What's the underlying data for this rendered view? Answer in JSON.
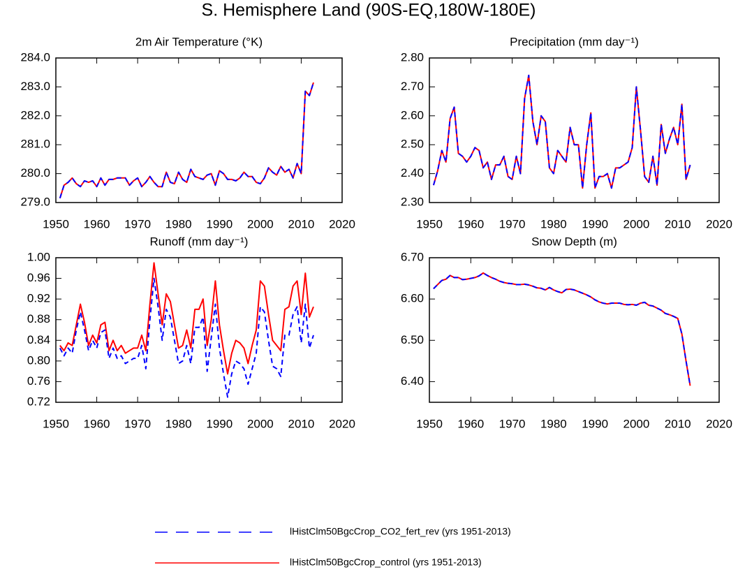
{
  "title": "S. Hemisphere Land (90S-EQ,180W-180E)",
  "chart_data": [
    {
      "type": "line",
      "title": "2m Air Temperature (°K)",
      "x": [
        1951,
        1952,
        1953,
        1954,
        1955,
        1956,
        1957,
        1958,
        1959,
        1960,
        1961,
        1962,
        1963,
        1964,
        1965,
        1966,
        1967,
        1968,
        1969,
        1970,
        1971,
        1972,
        1973,
        1974,
        1975,
        1976,
        1977,
        1978,
        1979,
        1980,
        1981,
        1982,
        1983,
        1984,
        1985,
        1986,
        1987,
        1988,
        1989,
        1990,
        1991,
        1992,
        1993,
        1994,
        1995,
        1996,
        1997,
        1998,
        1999,
        2000,
        2001,
        2002,
        2003,
        2004,
        2005,
        2006,
        2007,
        2008,
        2009,
        2010,
        2011,
        2012,
        2013
      ],
      "series": [
        {
          "name": "lHistClm50BgcCrop_CO2_fert_rev (yrs 1951-2013)",
          "color": "#0000ff",
          "dashed": true,
          "values": [
            279.15,
            279.6,
            279.7,
            279.85,
            279.65,
            279.55,
            279.75,
            279.7,
            279.75,
            279.55,
            279.85,
            279.6,
            279.8,
            279.8,
            279.85,
            279.85,
            279.85,
            279.6,
            279.75,
            279.85,
            279.55,
            279.7,
            279.9,
            279.7,
            279.55,
            279.55,
            280.05,
            279.7,
            279.65,
            280.05,
            279.8,
            279.7,
            280.15,
            279.9,
            279.85,
            279.8,
            279.95,
            280.0,
            279.6,
            280.1,
            280.0,
            279.8,
            279.8,
            279.75,
            279.85,
            280.05,
            279.9,
            279.9,
            279.7,
            279.65,
            279.85,
            280.2,
            280.05,
            279.95,
            280.25,
            280.05,
            280.15,
            279.85,
            280.35,
            280.0,
            282.85,
            282.7,
            283.15
          ]
        },
        {
          "name": "lHistClm50BgcCrop_control (yrs 1951-2013)",
          "color": "#ff0000",
          "dashed": false,
          "values": [
            279.15,
            279.6,
            279.7,
            279.85,
            279.65,
            279.55,
            279.75,
            279.7,
            279.75,
            279.55,
            279.85,
            279.6,
            279.8,
            279.8,
            279.85,
            279.85,
            279.85,
            279.6,
            279.75,
            279.85,
            279.55,
            279.7,
            279.9,
            279.7,
            279.55,
            279.55,
            280.05,
            279.7,
            279.65,
            280.05,
            279.8,
            279.7,
            280.15,
            279.9,
            279.85,
            279.8,
            279.95,
            280.0,
            279.6,
            280.1,
            280.0,
            279.8,
            279.8,
            279.75,
            279.85,
            280.05,
            279.9,
            279.9,
            279.7,
            279.65,
            279.85,
            280.2,
            280.05,
            279.95,
            280.25,
            280.05,
            280.15,
            279.85,
            280.35,
            280.0,
            282.85,
            282.7,
            283.15
          ]
        }
      ],
      "xlim": [
        1950,
        2020
      ],
      "xticks": [
        1950,
        1960,
        1970,
        1980,
        1990,
        2000,
        2010,
        2020
      ],
      "ylim": [
        279,
        284
      ],
      "yticks": [
        {
          "value": 279,
          "label": "279.0"
        },
        {
          "value": 280,
          "label": "280.0"
        },
        {
          "value": 281,
          "label": "281.0"
        },
        {
          "value": 282,
          "label": "282.0"
        },
        {
          "value": 283,
          "label": "283.0"
        },
        {
          "value": 284,
          "label": "284.0"
        }
      ]
    },
    {
      "type": "line",
      "title": "Precipitation (mm day⁻¹)",
      "x": [
        1951,
        1952,
        1953,
        1954,
        1955,
        1956,
        1957,
        1958,
        1959,
        1960,
        1961,
        1962,
        1963,
        1964,
        1965,
        1966,
        1967,
        1968,
        1969,
        1970,
        1971,
        1972,
        1973,
        1974,
        1975,
        1976,
        1977,
        1978,
        1979,
        1980,
        1981,
        1982,
        1983,
        1984,
        1985,
        1986,
        1987,
        1988,
        1989,
        1990,
        1991,
        1992,
        1993,
        1994,
        1995,
        1996,
        1997,
        1998,
        1999,
        2000,
        2001,
        2002,
        2003,
        2004,
        2005,
        2006,
        2007,
        2008,
        2009,
        2010,
        2011,
        2012,
        2013
      ],
      "series": [
        {
          "color": "#0000ff",
          "dashed": true,
          "values": [
            2.36,
            2.41,
            2.48,
            2.44,
            2.59,
            2.63,
            2.47,
            2.46,
            2.44,
            2.46,
            2.49,
            2.48,
            2.42,
            2.44,
            2.38,
            2.43,
            2.43,
            2.46,
            2.39,
            2.38,
            2.46,
            2.4,
            2.66,
            2.74,
            2.58,
            2.5,
            2.6,
            2.58,
            2.42,
            2.4,
            2.48,
            2.46,
            2.44,
            2.56,
            2.5,
            2.5,
            2.35,
            2.5,
            2.61,
            2.35,
            2.39,
            2.39,
            2.4,
            2.35,
            2.42,
            2.42,
            2.43,
            2.44,
            2.49,
            2.7,
            2.55,
            2.39,
            2.37,
            2.46,
            2.36,
            2.57,
            2.47,
            2.52,
            2.56,
            2.5,
            2.64,
            2.38,
            2.43
          ]
        },
        {
          "color": "#ff0000",
          "dashed": false,
          "values": [
            2.36,
            2.41,
            2.48,
            2.44,
            2.59,
            2.63,
            2.47,
            2.46,
            2.44,
            2.46,
            2.49,
            2.48,
            2.42,
            2.44,
            2.38,
            2.43,
            2.43,
            2.46,
            2.39,
            2.38,
            2.46,
            2.4,
            2.66,
            2.74,
            2.58,
            2.5,
            2.6,
            2.58,
            2.42,
            2.4,
            2.48,
            2.46,
            2.44,
            2.56,
            2.5,
            2.5,
            2.35,
            2.5,
            2.61,
            2.35,
            2.39,
            2.39,
            2.4,
            2.35,
            2.42,
            2.42,
            2.43,
            2.44,
            2.49,
            2.7,
            2.55,
            2.39,
            2.37,
            2.46,
            2.36,
            2.57,
            2.47,
            2.52,
            2.56,
            2.5,
            2.64,
            2.38,
            2.43
          ]
        }
      ],
      "xlim": [
        1950,
        2020
      ],
      "xticks": [
        1950,
        1960,
        1970,
        1980,
        1990,
        2000,
        2010,
        2020
      ],
      "ylim": [
        2.3,
        2.8
      ],
      "yticks": [
        {
          "value": 2.3,
          "label": "2.30"
        },
        {
          "value": 2.4,
          "label": "2.40"
        },
        {
          "value": 2.5,
          "label": "2.50"
        },
        {
          "value": 2.6,
          "label": "2.60"
        },
        {
          "value": 2.7,
          "label": "2.70"
        },
        {
          "value": 2.8,
          "label": "2.80"
        }
      ]
    },
    {
      "type": "line",
      "title": "Runoff (mm day⁻¹)",
      "x": [
        1951,
        1952,
        1953,
        1954,
        1955,
        1956,
        1957,
        1958,
        1959,
        1960,
        1961,
        1962,
        1963,
        1964,
        1965,
        1966,
        1967,
        1968,
        1969,
        1970,
        1971,
        1972,
        1973,
        1974,
        1975,
        1976,
        1977,
        1978,
        1979,
        1980,
        1981,
        1982,
        1983,
        1984,
        1985,
        1986,
        1987,
        1988,
        1989,
        1990,
        1991,
        1992,
        1993,
        1994,
        1995,
        1996,
        1997,
        1998,
        1999,
        2000,
        2001,
        2002,
        2003,
        2004,
        2005,
        2006,
        2007,
        2008,
        2009,
        2010,
        2011,
        2012,
        2013
      ],
      "series": [
        {
          "color": "#0000ff",
          "dashed": true,
          "values": [
            0.825,
            0.81,
            0.825,
            0.815,
            0.86,
            0.895,
            0.86,
            0.82,
            0.84,
            0.825,
            0.855,
            0.86,
            0.805,
            0.825,
            0.805,
            0.81,
            0.795,
            0.8,
            0.805,
            0.805,
            0.83,
            0.785,
            0.88,
            0.96,
            0.905,
            0.84,
            0.9,
            0.885,
            0.84,
            0.795,
            0.8,
            0.83,
            0.795,
            0.865,
            0.865,
            0.885,
            0.78,
            0.845,
            0.91,
            0.825,
            0.775,
            0.73,
            0.775,
            0.8,
            0.795,
            0.785,
            0.755,
            0.785,
            0.815,
            0.905,
            0.895,
            0.84,
            0.79,
            0.785,
            0.77,
            0.85,
            0.85,
            0.89,
            0.905,
            0.835,
            0.91,
            0.825,
            0.85
          ]
        },
        {
          "color": "#ff0000",
          "dashed": false,
          "values": [
            0.83,
            0.82,
            0.835,
            0.83,
            0.87,
            0.91,
            0.875,
            0.83,
            0.85,
            0.835,
            0.87,
            0.875,
            0.82,
            0.84,
            0.82,
            0.83,
            0.815,
            0.82,
            0.825,
            0.825,
            0.85,
            0.82,
            0.91,
            0.99,
            0.93,
            0.87,
            0.93,
            0.915,
            0.87,
            0.825,
            0.83,
            0.86,
            0.825,
            0.9,
            0.9,
            0.92,
            0.83,
            0.88,
            0.955,
            0.87,
            0.82,
            0.775,
            0.815,
            0.84,
            0.835,
            0.825,
            0.795,
            0.83,
            0.86,
            0.955,
            0.945,
            0.89,
            0.84,
            0.83,
            0.82,
            0.9,
            0.905,
            0.945,
            0.955,
            0.89,
            0.97,
            0.885,
            0.905
          ]
        }
      ],
      "xlim": [
        1950,
        2020
      ],
      "xticks": [
        1950,
        1960,
        1970,
        1980,
        1990,
        2000,
        2010,
        2020
      ],
      "ylim": [
        0.72,
        1.0
      ],
      "yticks": [
        {
          "value": 0.72,
          "label": "0.72"
        },
        {
          "value": 0.76,
          "label": "0.76"
        },
        {
          "value": 0.8,
          "label": "0.80"
        },
        {
          "value": 0.84,
          "label": "0.84"
        },
        {
          "value": 0.88,
          "label": "0.88"
        },
        {
          "value": 0.92,
          "label": "0.92"
        },
        {
          "value": 0.96,
          "label": "0.96"
        },
        {
          "value": 1.0,
          "label": "1.00"
        }
      ]
    },
    {
      "type": "line",
      "title": "Snow Depth (m)",
      "x": [
        1951,
        1952,
        1953,
        1954,
        1955,
        1956,
        1957,
        1958,
        1959,
        1960,
        1961,
        1962,
        1963,
        1964,
        1965,
        1966,
        1967,
        1968,
        1969,
        1970,
        1971,
        1972,
        1973,
        1974,
        1975,
        1976,
        1977,
        1978,
        1979,
        1980,
        1981,
        1982,
        1983,
        1984,
        1985,
        1986,
        1987,
        1988,
        1989,
        1990,
        1991,
        1992,
        1993,
        1994,
        1995,
        1996,
        1997,
        1998,
        1999,
        2000,
        2001,
        2002,
        2003,
        2004,
        2005,
        2006,
        2007,
        2008,
        2009,
        2010,
        2011,
        2012,
        2013
      ],
      "series": [
        {
          "color": "#0000ff",
          "dashed": true,
          "values": [
            6.625,
            6.635,
            6.645,
            6.648,
            6.657,
            6.652,
            6.652,
            6.647,
            6.648,
            6.65,
            6.652,
            6.656,
            6.663,
            6.657,
            6.652,
            6.648,
            6.643,
            6.64,
            6.638,
            6.637,
            6.635,
            6.635,
            6.636,
            6.634,
            6.631,
            6.627,
            6.626,
            6.622,
            6.628,
            6.622,
            6.618,
            6.615,
            6.623,
            6.624,
            6.622,
            6.618,
            6.614,
            6.61,
            6.605,
            6.598,
            6.593,
            6.59,
            6.588,
            6.59,
            6.59,
            6.59,
            6.587,
            6.586,
            6.587,
            6.585,
            6.59,
            6.592,
            6.585,
            6.583,
            6.578,
            6.573,
            6.565,
            6.562,
            6.558,
            6.553,
            6.515,
            6.45,
            6.39
          ]
        },
        {
          "color": "#ff0000",
          "dashed": false,
          "values": [
            6.625,
            6.635,
            6.645,
            6.648,
            6.657,
            6.652,
            6.652,
            6.647,
            6.648,
            6.65,
            6.652,
            6.656,
            6.663,
            6.657,
            6.652,
            6.648,
            6.643,
            6.64,
            6.638,
            6.637,
            6.635,
            6.635,
            6.636,
            6.634,
            6.631,
            6.627,
            6.626,
            6.622,
            6.628,
            6.622,
            6.618,
            6.615,
            6.623,
            6.624,
            6.622,
            6.618,
            6.614,
            6.61,
            6.605,
            6.598,
            6.593,
            6.59,
            6.588,
            6.59,
            6.59,
            6.59,
            6.587,
            6.586,
            6.587,
            6.585,
            6.59,
            6.592,
            6.585,
            6.583,
            6.578,
            6.573,
            6.565,
            6.562,
            6.558,
            6.553,
            6.515,
            6.45,
            6.39
          ]
        }
      ],
      "xlim": [
        1950,
        2020
      ],
      "xticks": [
        1950,
        1960,
        1970,
        1980,
        1990,
        2000,
        2010,
        2020
      ],
      "ylim": [
        6.35,
        6.7
      ],
      "yticks": [
        {
          "value": 6.4,
          "label": "6.40"
        },
        {
          "value": 6.5,
          "label": "6.50"
        },
        {
          "value": 6.6,
          "label": "6.60"
        },
        {
          "value": 6.7,
          "label": "6.70"
        }
      ]
    }
  ]
}
